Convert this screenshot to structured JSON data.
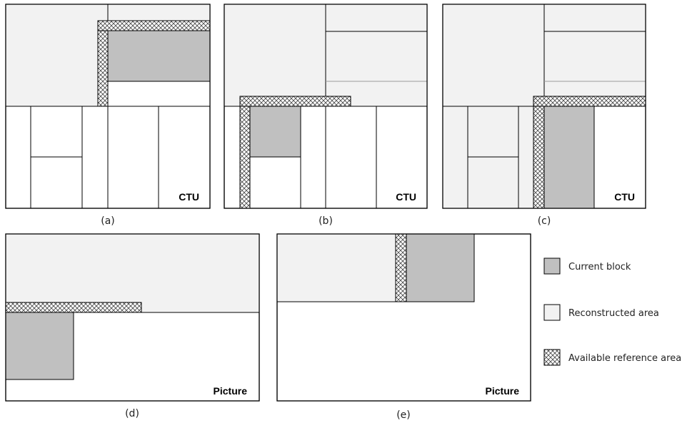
{
  "panels": {
    "a": {
      "caption": "(a)",
      "unit_label": "CTU"
    },
    "b": {
      "caption": "(b)",
      "unit_label": "CTU"
    },
    "c": {
      "caption": "(c)",
      "unit_label": "CTU"
    },
    "d": {
      "caption": "(d)",
      "unit_label": "Picture"
    },
    "e": {
      "caption": "(e)",
      "unit_label": "Picture"
    }
  },
  "legend": {
    "current_block": "Current block",
    "reconstructed_area": "Reconstructed area",
    "available_reference_area": "Available reference area"
  },
  "colors": {
    "current_block": "#c0c0c0",
    "reconstructed_area": "#f2f2f2",
    "background": "#ffffff",
    "line": "#000000"
  }
}
